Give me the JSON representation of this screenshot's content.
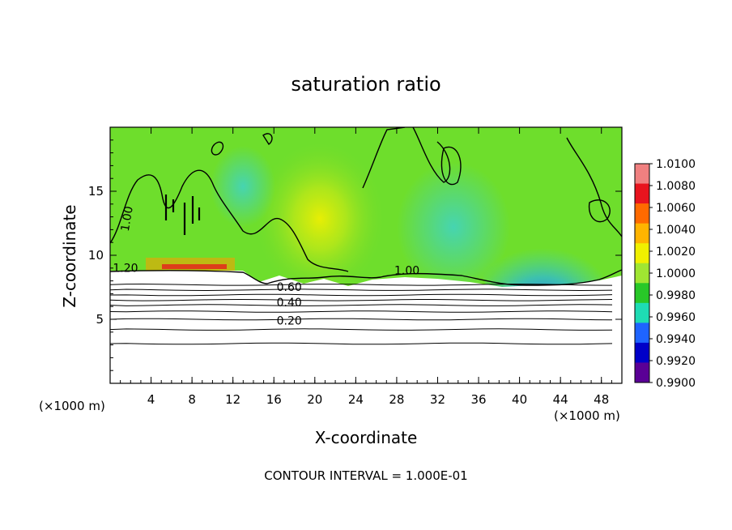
{
  "chart_data": {
    "type": "heatmap",
    "title": "saturation ratio",
    "xlabel": "X-coordinate",
    "ylabel": "Z-coordinate",
    "x_unit_label": "(×1000 m)",
    "x_unit_label_right": "(×1000 m)",
    "xlim": [
      0,
      50
    ],
    "ylim": [
      0,
      20
    ],
    "x_ticks": [
      "4",
      "8",
      "12",
      "16",
      "20",
      "24",
      "28",
      "32",
      "36",
      "40",
      "44",
      "48"
    ],
    "y_ticks": [
      "5",
      "10",
      "15"
    ],
    "contour_interval_text": "CONTOUR INTERVAL = 1.000E-01",
    "colorbar": {
      "labels": [
        "1.0100",
        "1.0080",
        "1.0060",
        "1.0040",
        "1.0020",
        "1.0000",
        "0.9980",
        "0.9960",
        "0.9940",
        "0.9920",
        "0.9900"
      ],
      "colors": [
        "#f08080",
        "#e8141e",
        "#ff6a00",
        "#ffb400",
        "#f0f000",
        "#a0e632",
        "#28c828",
        "#1edcb4",
        "#1e64ff",
        "#0000c8",
        "#5a0096"
      ]
    },
    "contour_labels": [
      {
        "text": "1.00",
        "x": 2.0,
        "z": 12.8
      },
      {
        "text": "1.20",
        "x": 1.5,
        "z": 8.7
      },
      {
        "text": "1.00",
        "x": 29.0,
        "z": 8.5
      },
      {
        "text": "0.60",
        "x": 17.5,
        "z": 7.2
      },
      {
        "text": "0.40",
        "x": 17.5,
        "z": 6.0
      },
      {
        "text": "0.20",
        "x": 17.5,
        "z": 4.6
      }
    ],
    "background_level": "1.0000"
  }
}
